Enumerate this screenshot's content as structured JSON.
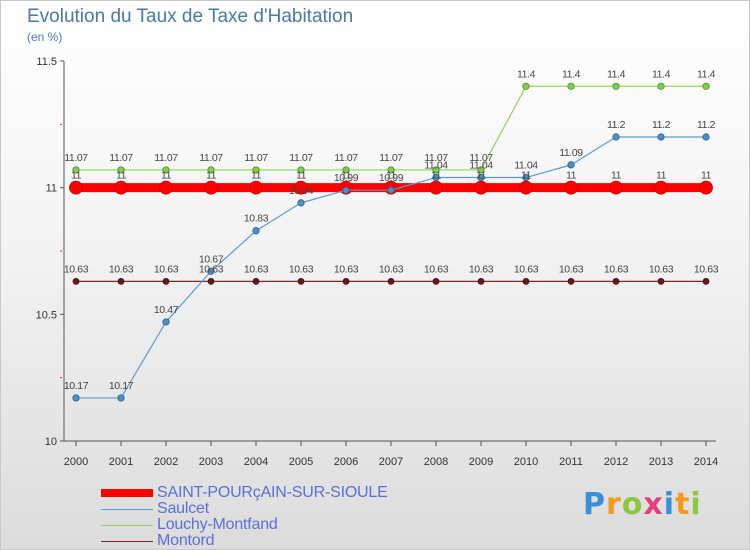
{
  "chart": {
    "title": "Evolution du Taux de Taxe d'Habitation",
    "subtitle": "(en %)"
  },
  "chart_data": {
    "type": "line",
    "x": [
      "2000",
      "2001",
      "2002",
      "2003",
      "2004",
      "2005",
      "2006",
      "2007",
      "2008",
      "2009",
      "2010",
      "2011",
      "2012",
      "2013",
      "2014"
    ],
    "ylim": [
      10,
      11.5
    ],
    "yticks": [
      "10",
      "10.5",
      "11",
      "11.5"
    ],
    "grid": false,
    "legend_placement": "bottom-left",
    "series": [
      {
        "name": "SAINT-POURçAIN-SUR-SIOULE",
        "color": "#ff0000",
        "values": [
          11,
          11,
          11,
          11,
          11,
          11,
          11,
          11,
          11,
          11,
          11,
          11,
          11,
          11,
          11
        ],
        "labels": [
          "11",
          "11",
          "11",
          "11",
          "11",
          "11",
          "11",
          "11",
          "11",
          "11",
          "11",
          "11",
          "11",
          "11",
          "11"
        ]
      },
      {
        "name": "Saulcet",
        "color": "#5a9bd0",
        "values": [
          10.17,
          10.17,
          10.47,
          10.67,
          10.83,
          10.94,
          10.99,
          10.99,
          11.04,
          11.04,
          11.04,
          11.09,
          11.2,
          11.2,
          11.2
        ],
        "labels": [
          "10.17",
          "10.17",
          "10.47",
          "10.67",
          "10.83",
          "10.94",
          "10.99",
          "10.99",
          "11.04",
          "11.04",
          "11.04",
          "11.09",
          "11.2",
          "11.2",
          "11.2"
        ]
      },
      {
        "name": "Louchy-Montfand",
        "color": "#8fd45a",
        "values": [
          11.07,
          11.07,
          11.07,
          11.07,
          11.07,
          11.07,
          11.07,
          11.07,
          11.07,
          11.07,
          11.4,
          11.4,
          11.4,
          11.4,
          11.4
        ],
        "labels": [
          "11.07",
          "11.07",
          "11.07",
          "11.07",
          "11.07",
          "11.07",
          "11.07",
          "11.07",
          "11.07",
          "11.07",
          "11.4",
          "11.4",
          "11.4",
          "11.4",
          "11.4"
        ]
      },
      {
        "name": "Montord",
        "color": "#7a2a2a",
        "values": [
          10.63,
          10.63,
          10.63,
          10.63,
          10.63,
          10.63,
          10.63,
          10.63,
          10.63,
          10.63,
          10.63,
          10.63,
          10.63,
          10.63,
          10.63
        ],
        "labels": [
          "10.63",
          "10.63",
          "10.63",
          "10.63",
          "10.63",
          "10.63",
          "10.63",
          "10.63",
          "10.63",
          "10.63",
          "10.63",
          "10.63",
          "10.63",
          "10.63",
          "10.63"
        ]
      }
    ]
  },
  "brand": {
    "letters": [
      "P",
      "r",
      "o",
      "x",
      "i",
      "t",
      "i"
    ],
    "colors": [
      "#3a8fd8",
      "#f29a1e",
      "#8bc83f",
      "#e43f7a",
      "#3a8fd8",
      "#f29a1e",
      "#8bc83f"
    ]
  }
}
